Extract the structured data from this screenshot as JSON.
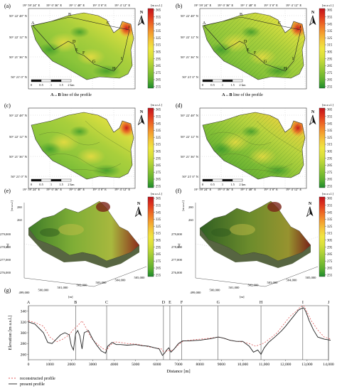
{
  "panels": {
    "a": {
      "letter": "(a)",
      "caption": "line of the profile",
      "caption_prefix": "A↔B"
    },
    "b": {
      "letter": "(b)",
      "caption": "line of the profile",
      "caption_prefix": "A↔B"
    },
    "c": {
      "letter": "(c)"
    },
    "d": {
      "letter": "(d)"
    },
    "e": {
      "letter": "(e)",
      "axis_x": "[m]",
      "axis_y": "[m]",
      "axis_z": "[m a.s.l]"
    },
    "f": {
      "letter": "(f)",
      "axis_x": "[m]",
      "axis_y": "[m]",
      "axis_z": "[m a.s.l]"
    },
    "g": {
      "letter": "(g)"
    }
  },
  "map_axes": {
    "lon_labels": [
      "19° 59' 24\" E",
      "19° 0' 36\" E",
      "19° 1' 48\" E",
      "19° 3' 0\" E",
      "19° 4' 12\" E"
    ],
    "lat_labels": [
      "50° 22' 48\" N",
      "50° 22' 12\" N",
      "50° 21' 36\" N",
      "50° 21' 0\" N"
    ]
  },
  "scale_bar": {
    "labels": [
      "0",
      "0.5",
      "1",
      "1.5",
      "2 km"
    ]
  },
  "north_arrow": {
    "label": "N"
  },
  "colorbar": {
    "unit": "[m a.s.l.]",
    "ticks": [
      "365",
      "355",
      "345",
      "335",
      "325",
      "315",
      "305",
      "295",
      "285",
      "275",
      "265",
      "255"
    ],
    "colors": [
      "#c1121a",
      "#e0371e",
      "#ee6a25",
      "#f49b2e",
      "#f4c53a",
      "#f0e63f",
      "#d9e03b",
      "#b0d236",
      "#86c132",
      "#5caf2e",
      "#3b9c2b",
      "#1d8a2b"
    ]
  },
  "profile_points": [
    "A",
    "B",
    "C",
    "D",
    "E",
    "F",
    "G",
    "H",
    "I",
    "J"
  ],
  "p3d_axes": {
    "x_ticks": [
      "499,000",
      "500,000",
      "501,000",
      "502,000",
      "503,000",
      "504,000",
      "505,000"
    ],
    "y_ticks": [
      "276,000",
      "277,000",
      "278,000",
      "279,000"
    ],
    "z_ticks": [
      "280",
      "260"
    ]
  },
  "chart_data": {
    "type": "line",
    "xlabel": "Distance [m]",
    "ylabel": "Elevation [m a.s.l.]",
    "xlim": [
      0,
      14000
    ],
    "ylim": [
      250,
      350
    ],
    "x_ticks": [
      0,
      1000,
      2000,
      3000,
      4000,
      5000,
      6000,
      7000,
      8000,
      9000,
      10000,
      11000,
      12000,
      13000,
      14000
    ],
    "y_ticks": [
      260,
      280,
      300,
      320,
      340
    ],
    "x_tick_labels": [
      "0",
      "1000",
      "2000",
      "3000",
      "4000",
      "5000",
      "6000",
      "7000",
      "8000",
      "9000",
      "10,000",
      "11,000",
      "12,000",
      "13,000",
      "14,000"
    ],
    "y_tick_labels": [
      "260",
      "280",
      "300",
      "320",
      "340"
    ],
    "profile_markers": [
      {
        "label": "A",
        "x": 0
      },
      {
        "label": "B",
        "x": 2200
      },
      {
        "label": "C",
        "x": 3650
      },
      {
        "label": "D",
        "x": 6300
      },
      {
        "label": "E",
        "x": 6600
      },
      {
        "label": "F",
        "x": 7150
      },
      {
        "label": "G",
        "x": 8850
      },
      {
        "label": "H",
        "x": 10850
      },
      {
        "label": "I",
        "x": 12800
      },
      {
        "label": "J",
        "x": 14100
      }
    ],
    "series": [
      {
        "name": "reconstructed profile",
        "color": "#e05a5a",
        "dash": "2,2",
        "x": [
          0,
          300,
          700,
          1000,
          1300,
          1600,
          1900,
          2100,
          2300,
          2500,
          2700,
          2900,
          3100,
          3300,
          3500,
          3650,
          3800,
          4000,
          4300,
          4600,
          5000,
          5300,
          5600,
          5900,
          6200,
          6350,
          6500,
          6650,
          6800,
          7000,
          7200,
          7500,
          8000,
          8500,
          8850,
          9100,
          9400,
          9700,
          10000,
          10300,
          10600,
          10800,
          11000,
          11300,
          11600,
          11900,
          12200,
          12500,
          12700,
          12850,
          13000,
          13200,
          13500,
          13800,
          14100
        ],
        "y": [
          322,
          319,
          312,
          292,
          283,
          288,
          296,
          306,
          313,
          322,
          308,
          292,
          283,
          276,
          270,
          268,
          276,
          283,
          282,
          280,
          279,
          277,
          274,
          272,
          270,
          262,
          268,
          266,
          270,
          278,
          284,
          286,
          288,
          290,
          292,
          290,
          286,
          284,
          283,
          280,
          275,
          278,
          281,
          290,
          300,
          315,
          330,
          340,
          348,
          350,
          338,
          322,
          305,
          292,
          288
        ]
      },
      {
        "name": "present profile",
        "color": "#222222",
        "x": [
          0,
          300,
          700,
          900,
          1100,
          1300,
          1500,
          1700,
          1900,
          2000,
          2100,
          2200,
          2300,
          2400,
          2500,
          2600,
          2800,
          3000,
          3200,
          3400,
          3600,
          3700,
          3900,
          4100,
          4300,
          4600,
          5000,
          5300,
          5600,
          5900,
          6100,
          6250,
          6350,
          6450,
          6550,
          6650,
          6800,
          7000,
          7200,
          7500,
          8000,
          8500,
          8850,
          9100,
          9400,
          9700,
          10000,
          10300,
          10500,
          10700,
          10850,
          11000,
          11200,
          11500,
          11800,
          12000,
          12200,
          12400,
          12600,
          12750,
          12850,
          12950,
          13100,
          13300,
          13500,
          13800,
          14100
        ],
        "y": [
          320,
          316,
          300,
          282,
          280,
          288,
          296,
          300,
          296,
          276,
          268,
          298,
          304,
          294,
          270,
          300,
          304,
          288,
          276,
          266,
          262,
          275,
          282,
          278,
          278,
          277,
          278,
          276,
          275,
          272,
          270,
          258,
          262,
          268,
          272,
          264,
          270,
          280,
          285,
          285,
          286,
          289,
          292,
          290,
          286,
          284,
          284,
          275,
          264,
          268,
          260,
          272,
          282,
          292,
          303,
          312,
          322,
          332,
          342,
          345,
          346,
          338,
          322,
          305,
          292,
          288,
          286
        ]
      }
    ]
  }
}
